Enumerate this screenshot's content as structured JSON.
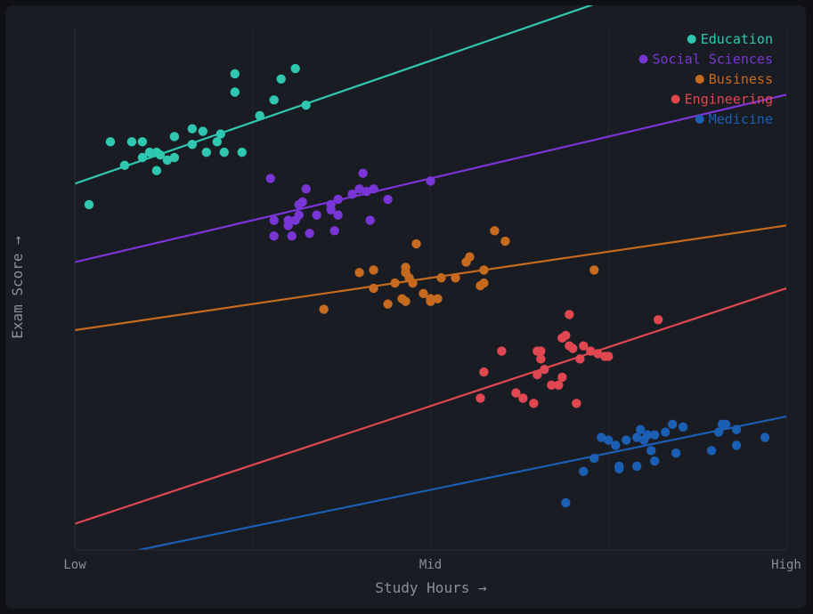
{
  "chart_data": {
    "type": "scatter",
    "title": "",
    "xlabel": "Study Hours →",
    "ylabel": "Exam Score →",
    "x_tick_labels": [
      "Low",
      "Mid",
      "High"
    ],
    "xlim": [
      0,
      100
    ],
    "ylim": [
      0,
      100
    ],
    "grid": true,
    "legend_position": "top-right",
    "series": [
      {
        "name": "Education",
        "color": "#2fc7b0",
        "trend": [
          [
            0,
            70
          ],
          [
            100,
            117
          ]
        ],
        "points": [
          [
            2,
            66
          ],
          [
            5,
            78
          ],
          [
            7,
            73.5
          ],
          [
            8,
            78
          ],
          [
            9.5,
            78
          ],
          [
            9.5,
            75
          ],
          [
            10.5,
            76
          ],
          [
            11.5,
            76
          ],
          [
            11.5,
            72.5
          ],
          [
            12,
            75.5
          ],
          [
            13,
            74.5
          ],
          [
            14,
            75
          ],
          [
            14,
            79
          ],
          [
            16.5,
            80.5
          ],
          [
            16.5,
            77.5
          ],
          [
            18,
            80
          ],
          [
            18.5,
            76
          ],
          [
            20,
            78
          ],
          [
            20.5,
            79.5
          ],
          [
            21,
            76
          ],
          [
            22.5,
            91
          ],
          [
            22.5,
            87.5
          ],
          [
            23.5,
            76
          ],
          [
            26,
            83
          ],
          [
            28,
            86
          ],
          [
            29,
            90
          ],
          [
            31,
            92
          ],
          [
            32.5,
            85
          ]
        ]
      },
      {
        "name": "Social Sciences",
        "color": "#7a35d6",
        "trend": [
          [
            0,
            55
          ],
          [
            100,
            87
          ]
        ],
        "points": [
          [
            27.5,
            71
          ],
          [
            28,
            60
          ],
          [
            28,
            63
          ],
          [
            30,
            63
          ],
          [
            30,
            62
          ],
          [
            30.5,
            60
          ],
          [
            31,
            63
          ],
          [
            31.5,
            64
          ],
          [
            31.5,
            66
          ],
          [
            32,
            66.5
          ],
          [
            32.5,
            69
          ],
          [
            33,
            60.5
          ],
          [
            34,
            64
          ],
          [
            36,
            66
          ],
          [
            36,
            65
          ],
          [
            36.5,
            61
          ],
          [
            37,
            64
          ],
          [
            37,
            67
          ],
          [
            39,
            68
          ],
          [
            40,
            69
          ],
          [
            40.5,
            72
          ],
          [
            41,
            68.5
          ],
          [
            41.5,
            63
          ],
          [
            42,
            69
          ],
          [
            44,
            67
          ],
          [
            50,
            70.5
          ]
        ]
      },
      {
        "name": "Business",
        "color": "#c56a1f",
        "trend": [
          [
            0,
            42
          ],
          [
            100,
            62
          ]
        ],
        "points": [
          [
            35,
            46
          ],
          [
            40,
            53
          ],
          [
            42,
            50
          ],
          [
            42,
            53.5
          ],
          [
            44,
            47
          ],
          [
            45,
            51
          ],
          [
            46,
            48
          ],
          [
            46.5,
            47.5
          ],
          [
            46.5,
            53
          ],
          [
            46.5,
            54
          ],
          [
            47,
            52
          ],
          [
            47.5,
            51
          ],
          [
            48,
            58.5
          ],
          [
            49,
            49
          ],
          [
            50,
            48
          ],
          [
            50,
            47.5
          ],
          [
            51,
            48
          ],
          [
            51.5,
            52
          ],
          [
            53.5,
            52
          ],
          [
            55,
            55
          ],
          [
            55.5,
            56
          ],
          [
            57,
            50.5
          ],
          [
            57.5,
            53.5
          ],
          [
            57.5,
            51
          ],
          [
            59,
            61
          ],
          [
            60.5,
            59
          ],
          [
            73,
            53.5
          ]
        ]
      },
      {
        "name": "Engineering",
        "color": "#e04751",
        "trend": [
          [
            0,
            5
          ],
          [
            100,
            50
          ]
        ],
        "points": [
          [
            57,
            29
          ],
          [
            57.5,
            34
          ],
          [
            60,
            38
          ],
          [
            62,
            30
          ],
          [
            63,
            29
          ],
          [
            64.5,
            28
          ],
          [
            65,
            33.5
          ],
          [
            65,
            38
          ],
          [
            65.5,
            36.5
          ],
          [
            65.5,
            38
          ],
          [
            66,
            34.5
          ],
          [
            67,
            31.5
          ],
          [
            68,
            31.5
          ],
          [
            68.5,
            33
          ],
          [
            68.5,
            40.5
          ],
          [
            69,
            41
          ],
          [
            69.5,
            39
          ],
          [
            69.5,
            45
          ],
          [
            70,
            38.5
          ],
          [
            70.5,
            28
          ],
          [
            71,
            36.5
          ],
          [
            71.5,
            39
          ],
          [
            72.5,
            38
          ],
          [
            73.5,
            37.5
          ],
          [
            74.5,
            37
          ],
          [
            75,
            37
          ],
          [
            82,
            44
          ]
        ]
      },
      {
        "name": "Medicine",
        "color": "#1b5fb5",
        "trend": [
          [
            9,
            0
          ],
          [
            100,
            25.5
          ]
        ],
        "points": [
          [
            69,
            9
          ],
          [
            71.5,
            15
          ],
          [
            73,
            17.5
          ],
          [
            74,
            21.5
          ],
          [
            75,
            21
          ],
          [
            76,
            20
          ],
          [
            76.5,
            16
          ],
          [
            76.5,
            15.5
          ],
          [
            77.5,
            21
          ],
          [
            79,
            21.5
          ],
          [
            79,
            16
          ],
          [
            79.5,
            23
          ],
          [
            80,
            21
          ],
          [
            80.5,
            22
          ],
          [
            81,
            19
          ],
          [
            81.5,
            17
          ],
          [
            81.5,
            22
          ],
          [
            83,
            22.5
          ],
          [
            84,
            24
          ],
          [
            84.5,
            18.5
          ],
          [
            85.5,
            23.5
          ],
          [
            89.5,
            19
          ],
          [
            90.5,
            22.5
          ],
          [
            91,
            24
          ],
          [
            91.5,
            24
          ],
          [
            93,
            20
          ],
          [
            93,
            23
          ],
          [
            97,
            21.5
          ]
        ]
      }
    ]
  }
}
